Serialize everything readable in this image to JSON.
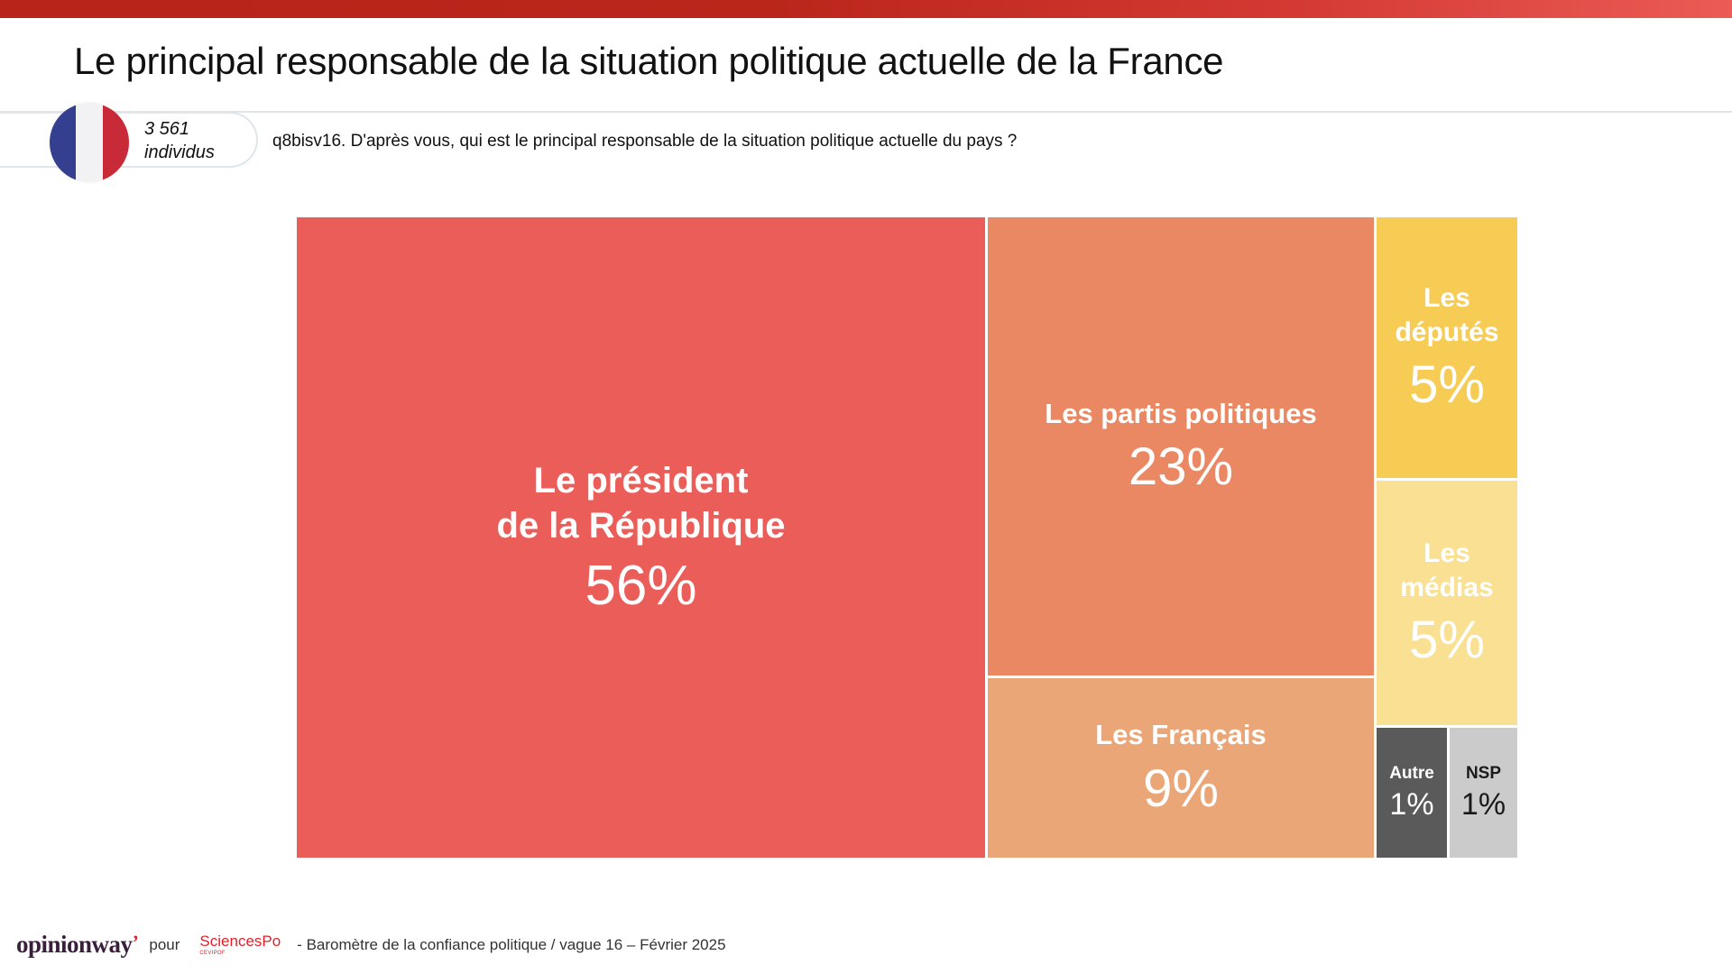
{
  "header": {
    "title": "Le principal responsable de la situation politique actuelle de la France",
    "accent_gradient": [
      "#b8241a",
      "#ec5b56"
    ]
  },
  "sample": {
    "count": "3 561",
    "unit": "individus",
    "flag_icon": "france-flag-icon",
    "flag_colors": [
      "#343f8f",
      "#f2f1f3",
      "#c92a37"
    ]
  },
  "question": "q8bisv16. D'après vous, qui est le principal responsable de la situation politique actuelle du pays ?",
  "chart_data": {
    "type": "treemap",
    "title": "Le principal responsable de la situation politique actuelle de la France",
    "unit": "%",
    "items": [
      {
        "key": "president",
        "label_lines": [
          "Le président",
          "de la République"
        ],
        "value": 56,
        "value_label": "56%",
        "color": "#eb5d58",
        "text_color": "#ffffff"
      },
      {
        "key": "partis",
        "label_lines": [
          "Les partis politiques"
        ],
        "value": 23,
        "value_label": "23%",
        "color": "#e98862",
        "text_color": "#ffffff"
      },
      {
        "key": "francais",
        "label_lines": [
          "Les Français"
        ],
        "value": 9,
        "value_label": "9%",
        "color": "#eba677",
        "text_color": "#ffffff"
      },
      {
        "key": "deputes",
        "label_lines": [
          "Les",
          "députés"
        ],
        "value": 5,
        "value_label": "5%",
        "color": "#f6cc55",
        "text_color": "#ffffff"
      },
      {
        "key": "medias",
        "label_lines": [
          "Les",
          "médias"
        ],
        "value": 5,
        "value_label": "5%",
        "color": "#f9e093",
        "text_color": "#ffffff"
      },
      {
        "key": "autre",
        "label_lines": [
          "Autre"
        ],
        "value": 1,
        "value_label": "1%",
        "color": "#5a5a5a",
        "text_color": "#ffffff"
      },
      {
        "key": "nsp",
        "label_lines": [
          "NSP"
        ],
        "value": 1,
        "value_label": "1%",
        "color": "#cbcbcb",
        "text_color": "#1a1a1a"
      }
    ]
  },
  "footer": {
    "brand": "opinionway",
    "pour": "pour",
    "partner": "SciencesPo",
    "partner_sub": "CEVIPOF",
    "source": "-  Baromètre de la confiance politique / vague 16 – Février 2025"
  }
}
